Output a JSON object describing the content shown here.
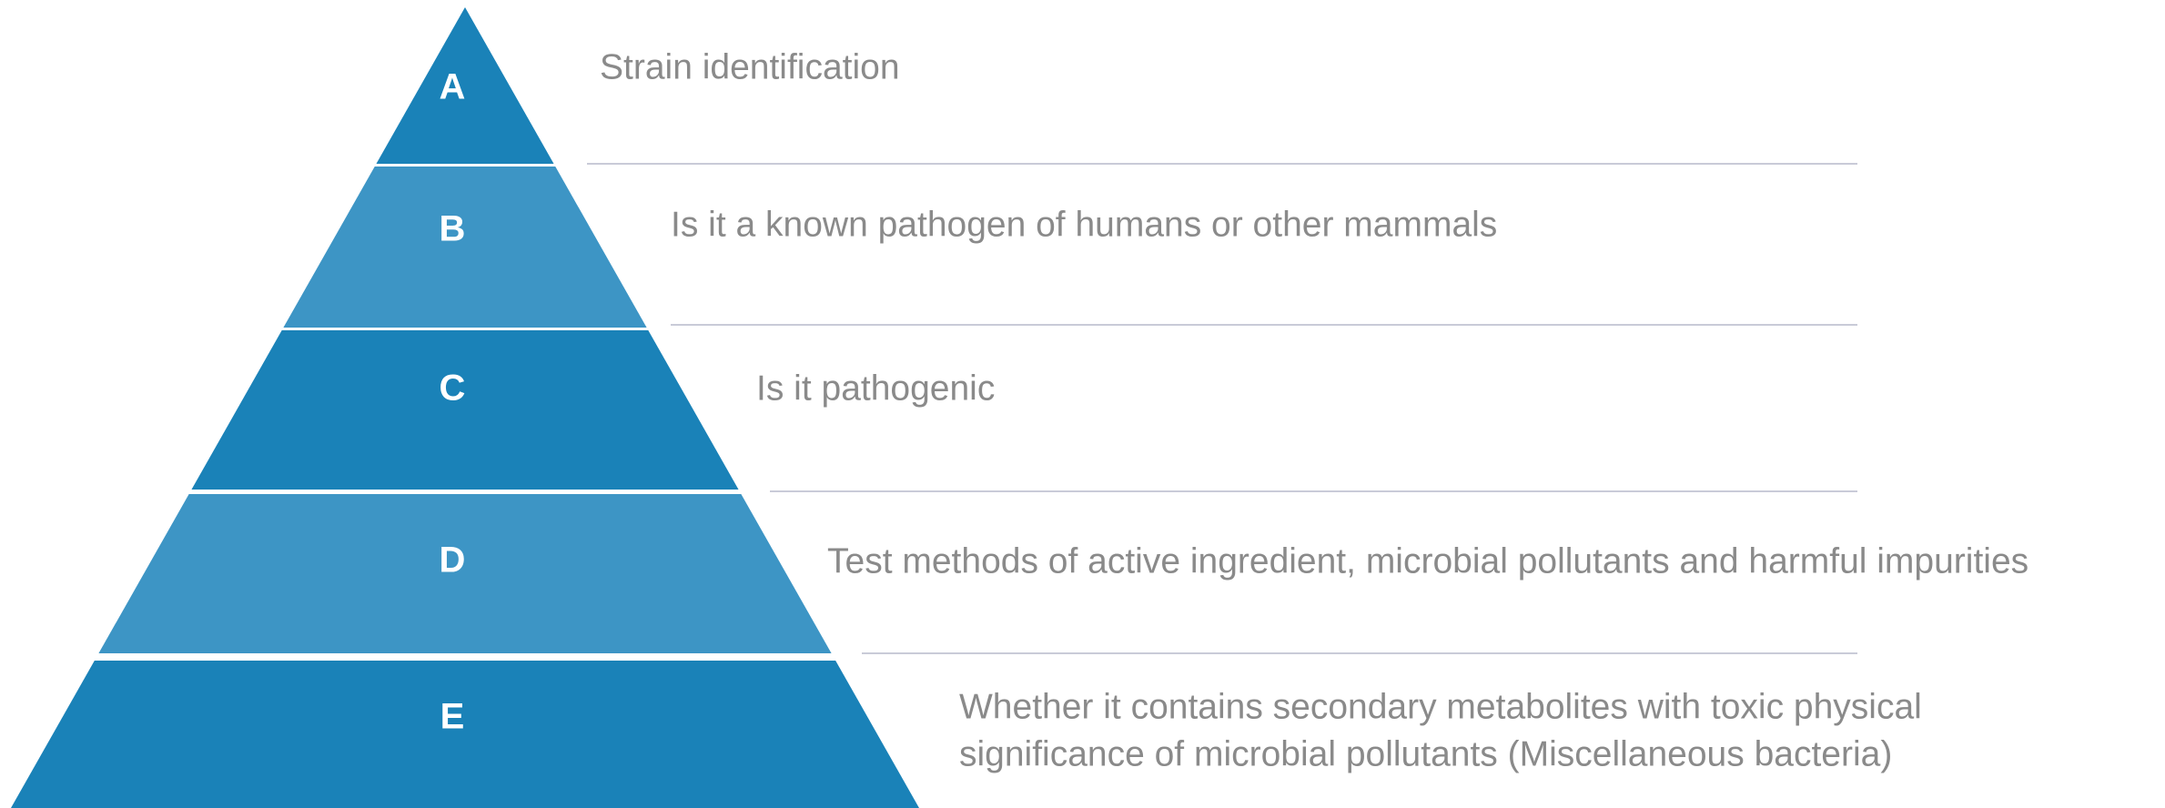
{
  "levels": [
    {
      "letter": "A",
      "text": [
        "Strain identification"
      ]
    },
    {
      "letter": "B",
      "text": [
        "Is it a known pathogen of humans or other mammals"
      ]
    },
    {
      "letter": "C",
      "text": [
        "Is it pathogenic"
      ]
    },
    {
      "letter": "D",
      "text": [
        "Test methods of active ingredient, microbial pollutants and harmful impurities"
      ]
    },
    {
      "letter": "E",
      "text": [
        "Whether it contains secondary metabolites with toxic physical",
        "significance of microbial pollutants (Miscellaneous bacteria)"
      ]
    }
  ]
}
